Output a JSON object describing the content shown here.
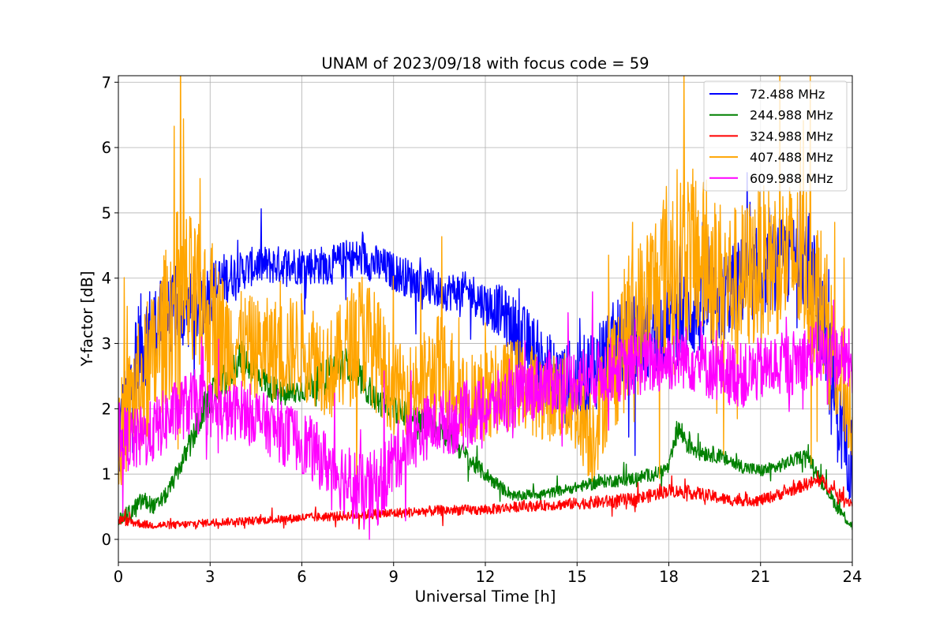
{
  "chart_data": {
    "type": "line",
    "title": "UNAM of 2023/09/18 with focus code = 59",
    "xlabel": "Universal Time [h]",
    "ylabel": "Y-factor [dB]",
    "xlim": [
      0,
      24
    ],
    "ylim": [
      -0.35,
      7.1
    ],
    "xticks": [
      0,
      3,
      6,
      9,
      12,
      15,
      18,
      21,
      24
    ],
    "yticks": [
      0,
      1,
      2,
      3,
      4,
      5,
      6,
      7
    ],
    "grid": true,
    "legend_position": "top-right",
    "series": [
      {
        "name": " 72.488 MHz",
        "color": "#0000ff",
        "x": [
          0.0,
          0.3,
          0.6,
          1.0,
          1.5,
          2.0,
          2.5,
          3.0,
          3.5,
          4.0,
          4.5,
          5.0,
          5.5,
          6.0,
          6.5,
          7.0,
          7.5,
          8.0,
          8.5,
          9.0,
          9.5,
          10.0,
          10.5,
          11.0,
          11.5,
          12.0,
          12.5,
          13.0,
          13.5,
          14.0,
          14.5,
          15.0,
          15.5,
          16.0,
          16.5,
          17.0,
          17.5,
          18.0,
          18.5,
          19.0,
          19.5,
          20.0,
          20.5,
          21.0,
          21.5,
          22.0,
          22.5,
          23.0,
          23.3,
          23.6,
          24.0
        ],
        "mean": [
          1.5,
          2.0,
          2.8,
          3.2,
          3.4,
          3.5,
          3.5,
          3.8,
          4.0,
          4.1,
          4.2,
          4.2,
          4.2,
          4.2,
          4.2,
          4.2,
          4.3,
          4.3,
          4.2,
          4.1,
          4.0,
          3.9,
          3.8,
          3.8,
          3.8,
          3.6,
          3.5,
          3.2,
          2.9,
          2.6,
          2.4,
          2.3,
          2.6,
          2.9,
          3.0,
          3.1,
          3.2,
          3.3,
          3.4,
          3.5,
          3.6,
          3.8,
          4.0,
          4.1,
          4.2,
          4.3,
          4.4,
          3.4,
          2.5,
          1.8,
          1.2
        ],
        "band": [
          0.8,
          0.9,
          0.9,
          0.7,
          0.6,
          0.6,
          0.6,
          0.5,
          0.4,
          0.3,
          0.3,
          0.3,
          0.3,
          0.3,
          0.3,
          0.3,
          0.3,
          0.3,
          0.3,
          0.3,
          0.3,
          0.3,
          0.3,
          0.3,
          0.3,
          0.35,
          0.4,
          0.5,
          0.6,
          0.6,
          0.6,
          0.7,
          0.7,
          0.7,
          0.7,
          0.7,
          0.7,
          0.7,
          0.7,
          0.7,
          0.7,
          0.7,
          0.7,
          0.7,
          0.7,
          0.7,
          0.8,
          0.9,
          0.9,
          0.8,
          0.7
        ]
      },
      {
        "name": "244.988 MHz",
        "color": "#008000",
        "x": [
          0.0,
          0.4,
          0.8,
          1.2,
          1.6,
          2.0,
          2.4,
          2.8,
          3.2,
          3.6,
          4.0,
          4.5,
          5.0,
          5.5,
          6.0,
          6.5,
          7.0,
          7.5,
          8.0,
          8.5,
          9.0,
          9.5,
          10.0,
          10.5,
          11.0,
          11.5,
          12.0,
          12.5,
          13.0,
          13.5,
          14.0,
          14.5,
          15.0,
          15.5,
          16.0,
          16.5,
          17.0,
          17.5,
          18.0,
          18.3,
          18.6,
          19.0,
          19.5,
          20.0,
          20.5,
          21.0,
          21.5,
          22.0,
          22.5,
          23.0,
          23.5,
          24.0
        ],
        "mean": [
          0.3,
          0.4,
          0.6,
          0.5,
          0.7,
          1.1,
          1.5,
          2.0,
          2.3,
          2.5,
          2.8,
          2.6,
          2.3,
          2.2,
          2.3,
          2.4,
          2.6,
          2.7,
          2.4,
          2.1,
          2.0,
          1.9,
          1.8,
          1.7,
          1.5,
          1.2,
          1.0,
          0.8,
          0.65,
          0.7,
          0.7,
          0.75,
          0.8,
          0.85,
          0.9,
          0.9,
          0.95,
          1.0,
          1.1,
          1.7,
          1.5,
          1.35,
          1.3,
          1.2,
          1.1,
          1.05,
          1.1,
          1.2,
          1.3,
          0.9,
          0.5,
          0.2
        ],
        "band": [
          0.1,
          0.15,
          0.15,
          0.12,
          0.12,
          0.15,
          0.2,
          0.25,
          0.25,
          0.25,
          0.25,
          0.25,
          0.2,
          0.2,
          0.2,
          0.25,
          0.25,
          0.25,
          0.25,
          0.2,
          0.2,
          0.2,
          0.2,
          0.2,
          0.2,
          0.15,
          0.12,
          0.1,
          0.08,
          0.08,
          0.08,
          0.08,
          0.08,
          0.1,
          0.1,
          0.1,
          0.1,
          0.1,
          0.1,
          0.2,
          0.2,
          0.15,
          0.12,
          0.12,
          0.1,
          0.1,
          0.1,
          0.1,
          0.1,
          0.1,
          0.1,
          0.08
        ]
      },
      {
        "name": "324.988 MHz",
        "color": "#ff0000",
        "x": [
          0.0,
          1.0,
          2.0,
          3.0,
          4.0,
          5.0,
          6.0,
          7.0,
          8.0,
          9.0,
          10.0,
          11.0,
          12.0,
          13.0,
          14.0,
          15.0,
          16.0,
          17.0,
          18.0,
          19.0,
          20.0,
          21.0,
          22.0,
          22.5,
          23.0,
          23.5,
          24.0
        ],
        "mean": [
          0.3,
          0.22,
          0.22,
          0.26,
          0.28,
          0.3,
          0.33,
          0.35,
          0.38,
          0.4,
          0.43,
          0.45,
          0.45,
          0.5,
          0.52,
          0.55,
          0.58,
          0.62,
          0.75,
          0.7,
          0.6,
          0.6,
          0.75,
          0.85,
          0.9,
          0.7,
          0.55
        ],
        "band": [
          0.08,
          0.06,
          0.06,
          0.06,
          0.06,
          0.06,
          0.07,
          0.07,
          0.08,
          0.08,
          0.08,
          0.08,
          0.08,
          0.08,
          0.08,
          0.09,
          0.1,
          0.1,
          0.1,
          0.1,
          0.09,
          0.09,
          0.09,
          0.1,
          0.1,
          0.1,
          0.08
        ]
      },
      {
        "name": "407.488 MHz",
        "color": "#ffa500",
        "x": [
          0.0,
          0.5,
          1.0,
          1.5,
          2.0,
          2.5,
          3.0,
          3.5,
          4.0,
          4.5,
          5.0,
          5.5,
          6.0,
          6.5,
          7.0,
          7.5,
          8.0,
          8.5,
          9.0,
          9.5,
          10.0,
          10.5,
          11.0,
          11.5,
          12.0,
          12.5,
          13.0,
          13.5,
          14.0,
          14.5,
          15.0,
          15.5,
          16.0,
          16.5,
          17.0,
          17.5,
          18.0,
          18.5,
          19.0,
          19.5,
          20.0,
          20.5,
          21.0,
          21.5,
          22.0,
          22.5,
          23.0,
          23.5,
          24.0
        ],
        "mean": [
          1.5,
          2.2,
          2.5,
          3.2,
          3.8,
          3.6,
          3.4,
          3.0,
          3.0,
          2.9,
          2.9,
          2.9,
          3.0,
          2.8,
          2.6,
          2.9,
          3.2,
          2.8,
          2.3,
          2.3,
          2.4,
          2.6,
          2.4,
          2.2,
          2.2,
          2.3,
          2.4,
          2.3,
          2.2,
          2.2,
          2.0,
          1.6,
          2.4,
          3.0,
          3.4,
          3.8,
          4.2,
          4.4,
          4.3,
          4.1,
          3.9,
          4.0,
          4.2,
          4.3,
          4.3,
          4.2,
          3.6,
          2.6,
          2.0
        ],
        "band": [
          0.8,
          1.0,
          1.1,
          1.2,
          1.4,
          1.3,
          1.2,
          1.0,
          0.8,
          0.8,
          0.8,
          0.8,
          0.8,
          0.8,
          0.8,
          0.9,
          1.0,
          0.9,
          0.7,
          0.7,
          0.8,
          0.9,
          0.8,
          0.7,
          0.7,
          0.7,
          0.7,
          0.7,
          0.7,
          0.7,
          0.7,
          0.8,
          0.9,
          1.1,
          1.2,
          1.3,
          1.4,
          1.4,
          1.3,
          1.2,
          1.2,
          1.2,
          1.2,
          1.2,
          1.2,
          1.3,
          1.2,
          1.0,
          0.8
        ]
      },
      {
        "name": "609.988 MHz",
        "color": "#ff00ff",
        "x": [
          0.0,
          0.5,
          1.0,
          1.5,
          2.0,
          2.5,
          3.0,
          3.5,
          4.0,
          4.5,
          5.0,
          5.5,
          6.0,
          6.5,
          7.0,
          7.5,
          8.0,
          8.5,
          9.0,
          9.5,
          10.0,
          10.5,
          11.0,
          11.5,
          12.0,
          12.5,
          13.0,
          13.5,
          14.0,
          14.5,
          15.0,
          15.5,
          16.0,
          16.5,
          17.0,
          17.5,
          18.0,
          18.5,
          19.0,
          19.5,
          20.0,
          20.5,
          21.0,
          21.5,
          22.0,
          22.5,
          23.0,
          23.5,
          24.0
        ],
        "mean": [
          1.6,
          1.5,
          1.6,
          1.8,
          2.0,
          2.1,
          2.0,
          1.9,
          2.0,
          1.9,
          1.7,
          1.6,
          1.5,
          1.3,
          1.1,
          0.9,
          0.7,
          0.8,
          1.2,
          1.5,
          1.7,
          1.8,
          1.8,
          1.9,
          2.0,
          2.1,
          2.2,
          2.3,
          2.4,
          2.4,
          2.45,
          2.5,
          2.6,
          2.6,
          2.7,
          2.7,
          2.75,
          2.8,
          2.7,
          2.6,
          2.55,
          2.5,
          2.6,
          2.65,
          2.7,
          2.8,
          2.85,
          2.8,
          2.7
        ],
        "band": [
          0.5,
          0.5,
          0.5,
          0.5,
          0.5,
          0.5,
          0.45,
          0.45,
          0.45,
          0.45,
          0.45,
          0.5,
          0.5,
          0.5,
          0.5,
          0.6,
          0.6,
          0.6,
          0.55,
          0.5,
          0.5,
          0.5,
          0.5,
          0.5,
          0.5,
          0.5,
          0.5,
          0.5,
          0.5,
          0.5,
          0.5,
          0.5,
          0.5,
          0.5,
          0.5,
          0.5,
          0.5,
          0.5,
          0.5,
          0.5,
          0.5,
          0.5,
          0.5,
          0.5,
          0.5,
          0.5,
          0.5,
          0.5,
          0.5
        ]
      }
    ]
  }
}
